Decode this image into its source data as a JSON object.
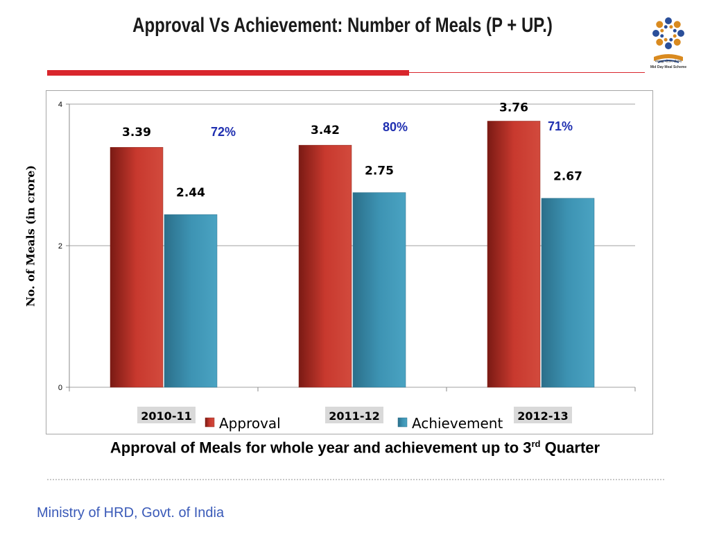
{
  "slide": {
    "title": "Approval Vs Achievement:  Number of Meals (P + UP.)",
    "caption_main": "Approval of Meals for whole year and achievement up to 3",
    "caption_sup": "rd",
    "caption_end": " Quarter",
    "footer": "Ministry of HRD, Govt. of India",
    "logo_text_line1": "मध्याह्न भोजन योजना",
    "logo_text_line2": "Mid Day Meal Scheme",
    "colors": {
      "title_red": "#d9262c",
      "approval": "#c0392b",
      "achievement": "#3a8fad",
      "percent_blue": "#1f2fb0",
      "footer_blue": "#3a5ab8"
    }
  },
  "chart_data": {
    "type": "bar",
    "title": "",
    "xlabel": "",
    "ylabel": "No. of Meals (in crore)",
    "ylim": [
      0,
      4
    ],
    "yticks": [
      0,
      2,
      4
    ],
    "ytick_labels": [
      "0",
      "2",
      "4"
    ],
    "grid": true,
    "legend_position": "bottom",
    "categories": [
      "2010-11",
      "2011-12",
      "2012-13"
    ],
    "series": [
      {
        "name": "Approval",
        "values": [
          3.39,
          3.42,
          3.76
        ],
        "labels": [
          "3.39",
          "3.42",
          "3.76"
        ],
        "color": "#c0392b"
      },
      {
        "name": "Achievement",
        "values": [
          2.44,
          2.75,
          2.67
        ],
        "labels": [
          "2.44",
          "2.75",
          "2.67"
        ],
        "color": "#3a8fad"
      }
    ],
    "annotations": [
      "72%",
      "80%",
      "71%"
    ]
  }
}
